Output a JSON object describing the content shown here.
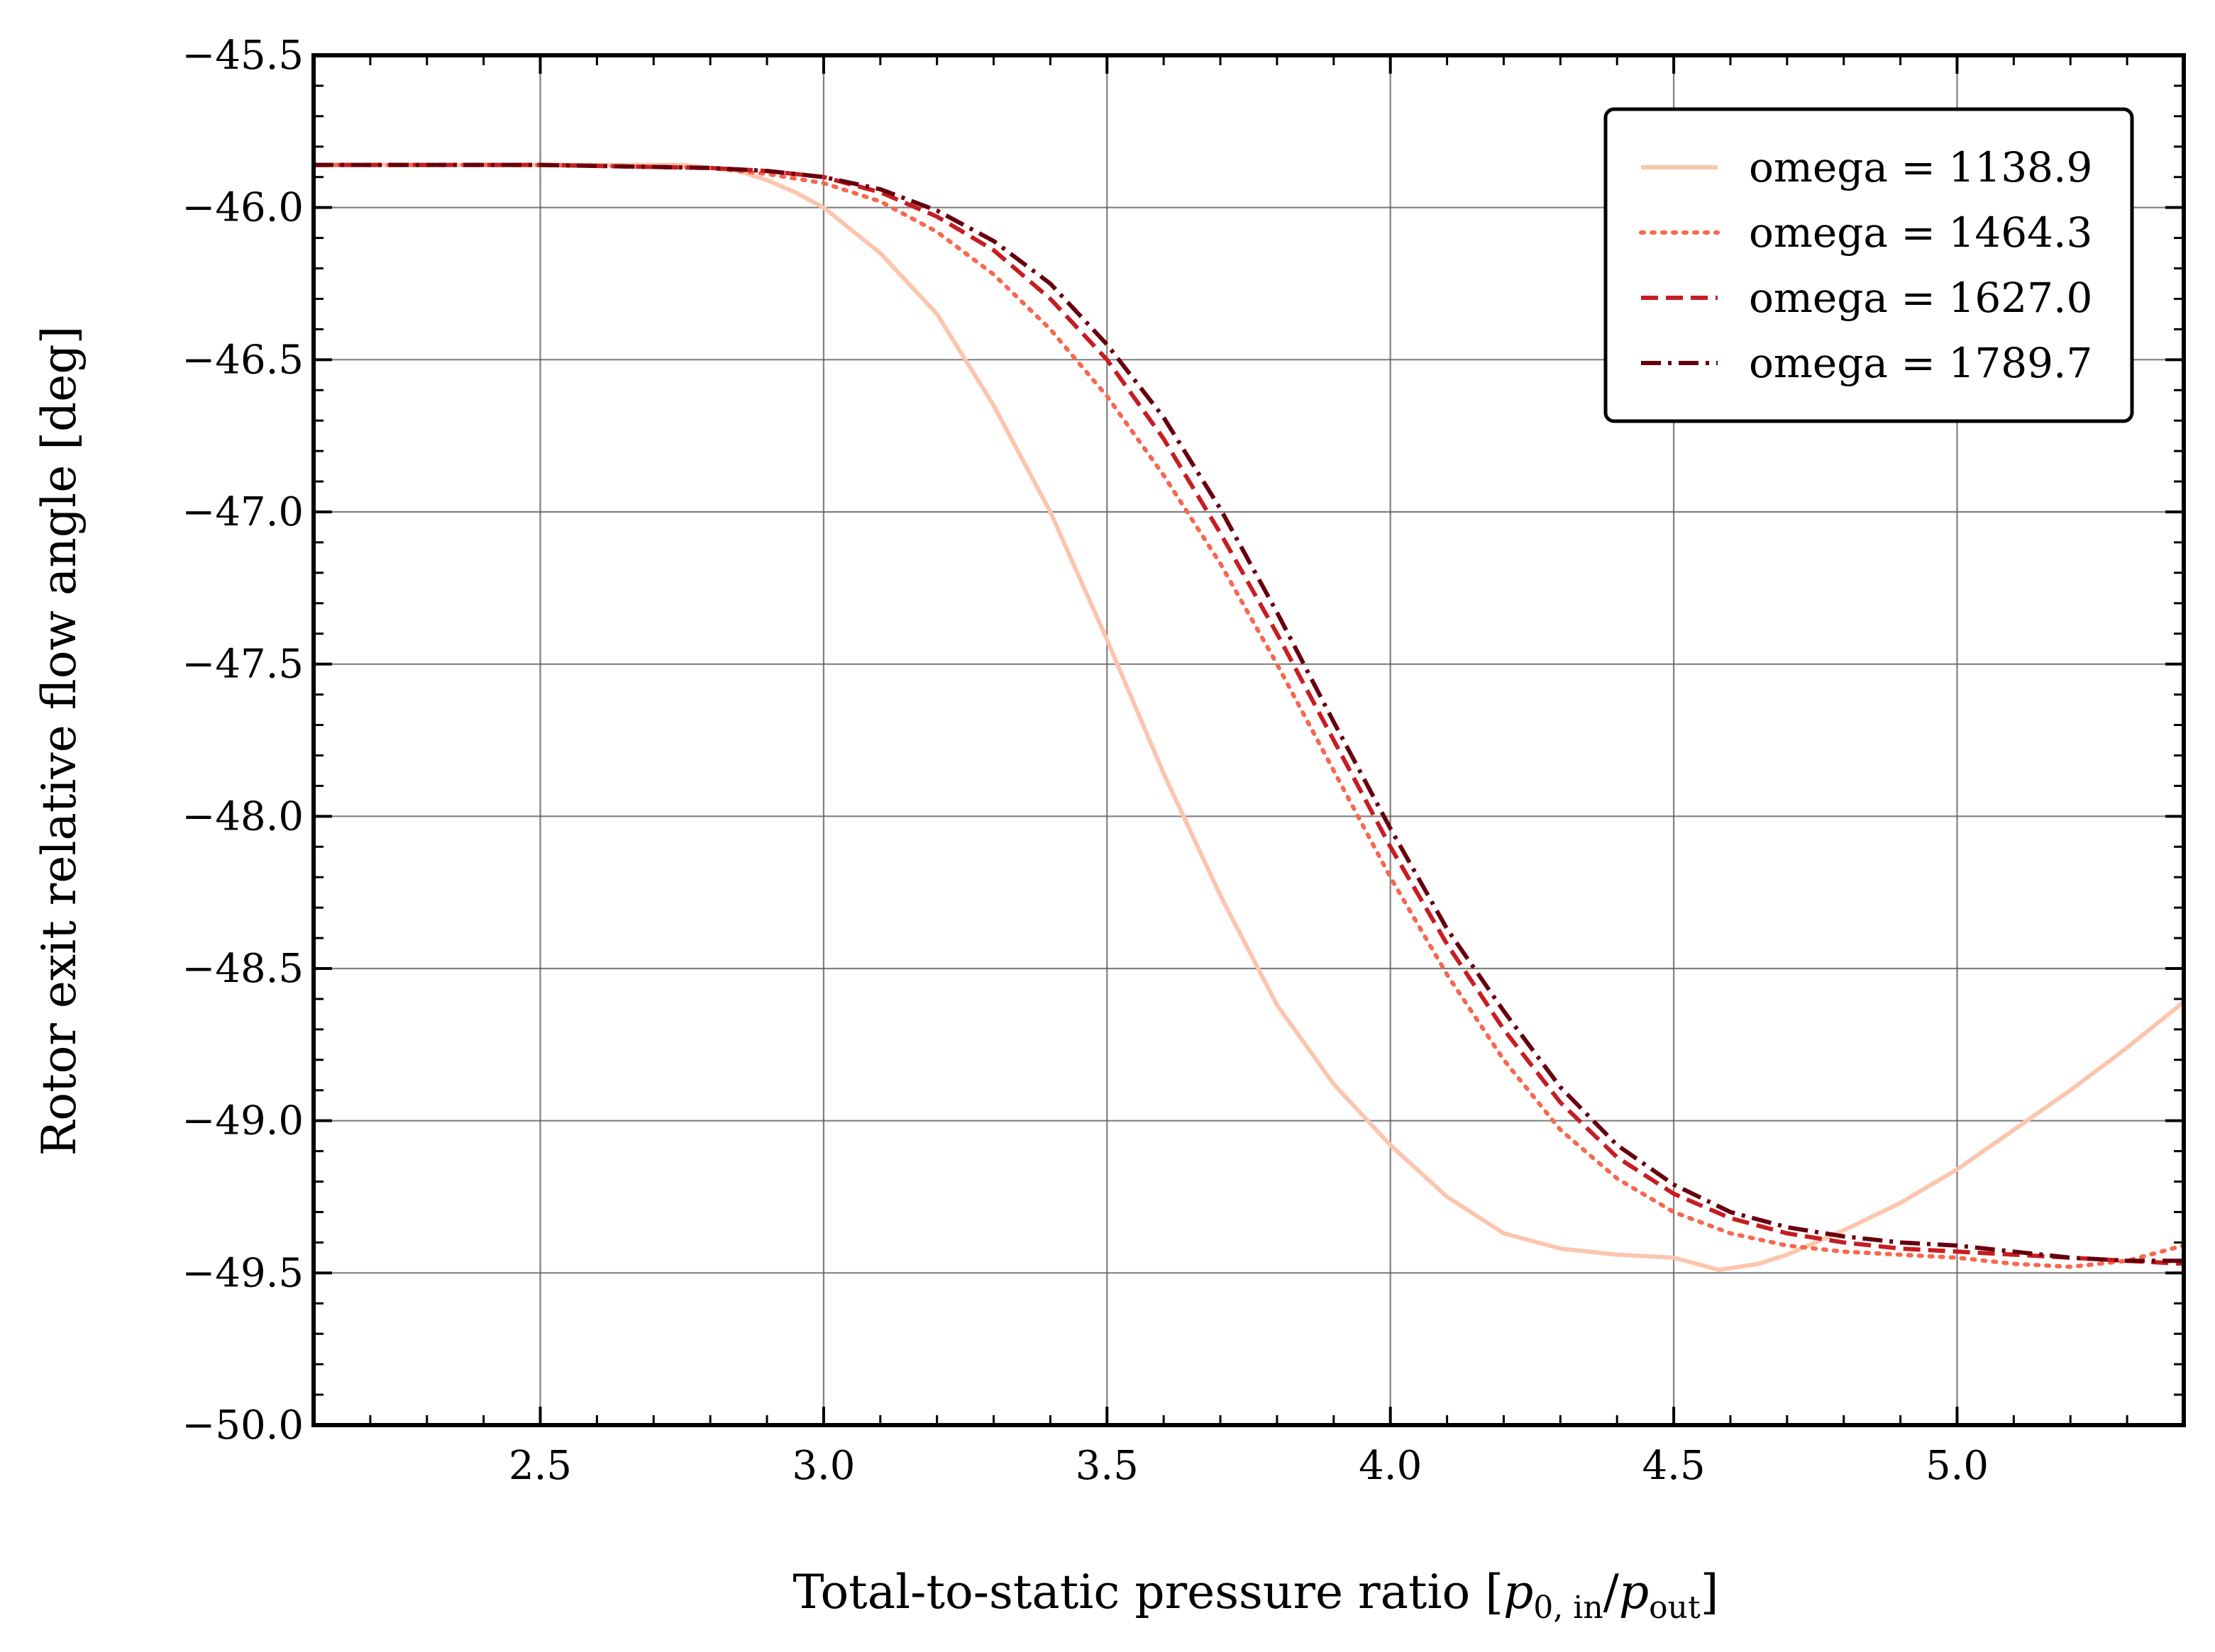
{
  "chart_data": {
    "type": "line",
    "title": "",
    "xlabel": "Total-to-static pressure ratio [",
    "xlabel_math": {
      "p0": "p",
      "sub0": "0, in",
      "slash": "/",
      "p1": "p",
      "sub1": "out",
      "close": "]"
    },
    "ylabel": "Rotor exit relative flow angle [deg]",
    "xlim": [
      2.1,
      5.4
    ],
    "ylim": [
      -50.0,
      -45.5
    ],
    "x_ticks": [
      2.5,
      3.0,
      3.5,
      4.0,
      4.5,
      5.0
    ],
    "x_tick_labels": [
      "2.5",
      "3.0",
      "3.5",
      "4.0",
      "4.5",
      "5.0"
    ],
    "y_ticks": [
      -50.0,
      -49.5,
      -49.0,
      -48.5,
      -48.0,
      -47.5,
      -47.0,
      -46.5,
      -46.0,
      -45.5
    ],
    "y_tick_labels": [
      "−50.0",
      "−49.5",
      "−49.0",
      "−48.5",
      "−48.0",
      "−47.5",
      "−47.0",
      "−46.5",
      "−46.0",
      "−45.5"
    ],
    "grid": true,
    "legend_position": "top-right",
    "series": [
      {
        "name": "omega = 1138.9",
        "color": "#fcc5ae",
        "dash": "solid",
        "x": [
          2.1,
          2.5,
          2.75,
          2.85,
          2.9,
          2.95,
          3.0,
          3.1,
          3.2,
          3.3,
          3.4,
          3.5,
          3.6,
          3.7,
          3.8,
          3.9,
          4.0,
          4.1,
          4.2,
          4.3,
          4.4,
          4.5,
          4.58,
          4.65,
          4.7,
          4.8,
          4.9,
          5.0,
          5.1,
          5.2,
          5.3,
          5.4
        ],
        "y": [
          -45.86,
          -45.86,
          -45.86,
          -45.88,
          -45.91,
          -45.95,
          -46.0,
          -46.15,
          -46.35,
          -46.65,
          -47.0,
          -47.42,
          -47.86,
          -48.26,
          -48.62,
          -48.88,
          -49.08,
          -49.25,
          -49.37,
          -49.42,
          -49.44,
          -49.45,
          -49.49,
          -49.47,
          -49.44,
          -49.36,
          -49.27,
          -49.16,
          -49.03,
          -48.9,
          -48.76,
          -48.61
        ]
      },
      {
        "name": "omega = 1464.3",
        "color": "#f6684f",
        "dash": "dotted",
        "x": [
          2.1,
          2.5,
          2.8,
          2.9,
          3.0,
          3.1,
          3.2,
          3.3,
          3.4,
          3.5,
          3.6,
          3.7,
          3.8,
          3.9,
          4.0,
          4.1,
          4.2,
          4.3,
          4.4,
          4.5,
          4.6,
          4.7,
          4.8,
          4.9,
          5.0,
          5.1,
          5.2,
          5.3,
          5.4
        ],
        "y": [
          -45.86,
          -45.86,
          -45.87,
          -45.89,
          -45.92,
          -45.98,
          -46.08,
          -46.22,
          -46.4,
          -46.62,
          -46.88,
          -47.17,
          -47.5,
          -47.85,
          -48.2,
          -48.52,
          -48.8,
          -49.03,
          -49.19,
          -49.3,
          -49.37,
          -49.41,
          -49.43,
          -49.44,
          -49.45,
          -49.47,
          -49.48,
          -49.46,
          -49.41
        ]
      },
      {
        "name": "omega = 1627.0",
        "color": "#c61d23",
        "dash": "dashed",
        "x": [
          2.1,
          2.5,
          2.8,
          2.9,
          3.0,
          3.1,
          3.2,
          3.3,
          3.4,
          3.5,
          3.6,
          3.7,
          3.8,
          3.9,
          4.0,
          4.1,
          4.2,
          4.3,
          4.4,
          4.5,
          4.6,
          4.7,
          4.8,
          4.9,
          5.0,
          5.1,
          5.2,
          5.3,
          5.4
        ],
        "y": [
          -45.86,
          -45.86,
          -45.87,
          -45.88,
          -45.9,
          -45.95,
          -46.03,
          -46.14,
          -46.3,
          -46.5,
          -46.76,
          -47.07,
          -47.4,
          -47.75,
          -48.1,
          -48.42,
          -48.7,
          -48.94,
          -49.12,
          -49.24,
          -49.32,
          -49.37,
          -49.4,
          -49.42,
          -49.43,
          -49.44,
          -49.45,
          -49.46,
          -49.47
        ]
      },
      {
        "name": "omega = 1789.7",
        "color": "#67000d",
        "dash": "dashdot",
        "x": [
          2.1,
          2.5,
          2.8,
          2.9,
          3.0,
          3.1,
          3.2,
          3.3,
          3.4,
          3.5,
          3.6,
          3.7,
          3.8,
          3.9,
          4.0,
          4.1,
          4.2,
          4.3,
          4.4,
          4.5,
          4.6,
          4.7,
          4.8,
          4.9,
          5.0,
          5.1,
          5.2,
          5.3,
          5.4
        ],
        "y": [
          -45.86,
          -45.86,
          -45.87,
          -45.88,
          -45.9,
          -45.94,
          -46.01,
          -46.11,
          -46.25,
          -46.45,
          -46.69,
          -46.99,
          -47.33,
          -47.69,
          -48.04,
          -48.37,
          -48.64,
          -48.89,
          -49.08,
          -49.21,
          -49.3,
          -49.35,
          -49.38,
          -49.4,
          -49.41,
          -49.43,
          -49.45,
          -49.46,
          -49.46
        ]
      }
    ]
  }
}
